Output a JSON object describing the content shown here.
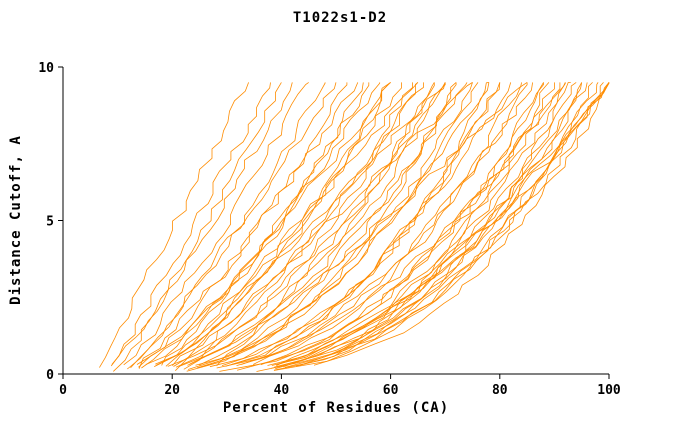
{
  "chart_data": {
    "type": "line",
    "title": "T1022s1-D2",
    "xlabel": "Percent of Residues (CA)",
    "ylabel": "Distance Cutoff, A",
    "xlim": [
      0,
      100
    ],
    "ylim": [
      0,
      10
    ],
    "xticks": [
      0,
      20,
      40,
      60,
      80,
      100
    ],
    "yticks": [
      0,
      5,
      10
    ],
    "grid": false,
    "legend": null,
    "line_color": "#ff8c00",
    "axis_color": "#000000",
    "cutoff_max": 9.5,
    "series_format": "each curve: x0 = percent at cutoff 0, x1 = percent at cutoff 9.5, q = shape exponent of x(y) = x0 + (x1-x0)*(y/9.5)^q",
    "series": [
      {
        "x0": 6,
        "x1": 34,
        "q": 1.0
      },
      {
        "x0": 8,
        "x1": 38,
        "q": 0.95
      },
      {
        "x0": 9,
        "x1": 42,
        "q": 0.9
      },
      {
        "x0": 10,
        "x1": 45,
        "q": 0.85
      },
      {
        "x0": 10,
        "x1": 48,
        "q": 0.8
      },
      {
        "x0": 11,
        "x1": 50,
        "q": 0.9
      },
      {
        "x0": 11,
        "x1": 52,
        "q": 0.75
      },
      {
        "x0": 12,
        "x1": 54,
        "q": 0.85
      },
      {
        "x0": 12,
        "x1": 56,
        "q": 0.7
      },
      {
        "x0": 13,
        "x1": 58,
        "q": 0.8
      },
      {
        "x0": 13,
        "x1": 60,
        "q": 0.65
      },
      {
        "x0": 14,
        "x1": 62,
        "q": 0.75
      },
      {
        "x0": 14,
        "x1": 64,
        "q": 0.6
      },
      {
        "x0": 15,
        "x1": 66,
        "q": 0.7
      },
      {
        "x0": 15,
        "x1": 68,
        "q": 0.55
      },
      {
        "x0": 16,
        "x1": 70,
        "q": 0.65
      },
      {
        "x0": 16,
        "x1": 72,
        "q": 0.5
      },
      {
        "x0": 17,
        "x1": 74,
        "q": 0.6
      },
      {
        "x0": 17,
        "x1": 76,
        "q": 0.5
      },
      {
        "x0": 18,
        "x1": 78,
        "q": 0.55
      },
      {
        "x0": 18,
        "x1": 80,
        "q": 0.45
      },
      {
        "x0": 19,
        "x1": 82,
        "q": 0.5
      },
      {
        "x0": 19,
        "x1": 84,
        "q": 0.45
      },
      {
        "x0": 20,
        "x1": 86,
        "q": 0.5
      },
      {
        "x0": 20,
        "x1": 88,
        "q": 0.42
      },
      {
        "x0": 21,
        "x1": 90,
        "q": 0.45
      },
      {
        "x0": 21,
        "x1": 92,
        "q": 0.4
      },
      {
        "x0": 22,
        "x1": 94,
        "q": 0.42
      },
      {
        "x0": 22,
        "x1": 96,
        "q": 0.4
      },
      {
        "x0": 23,
        "x1": 98,
        "q": 0.38
      },
      {
        "x0": 23,
        "x1": 100,
        "q": 0.4
      },
      {
        "x0": 24,
        "x1": 100,
        "q": 0.36
      },
      {
        "x0": 25,
        "x1": 99,
        "q": 0.42
      },
      {
        "x0": 26,
        "x1": 97,
        "q": 0.38
      },
      {
        "x0": 27,
        "x1": 95,
        "q": 0.45
      },
      {
        "x0": 28,
        "x1": 93,
        "q": 0.4
      },
      {
        "x0": 30,
        "x1": 91,
        "q": 0.5
      },
      {
        "x0": 32,
        "x1": 89,
        "q": 0.45
      },
      {
        "x0": 8,
        "x1": 55,
        "q": 0.6
      },
      {
        "x0": 9,
        "x1": 60,
        "q": 0.55
      },
      {
        "x0": 10,
        "x1": 65,
        "q": 0.5
      },
      {
        "x0": 11,
        "x1": 70,
        "q": 0.48
      },
      {
        "x0": 12,
        "x1": 75,
        "q": 0.45
      },
      {
        "x0": 13,
        "x1": 80,
        "q": 0.42
      },
      {
        "x0": 14,
        "x1": 85,
        "q": 0.4
      },
      {
        "x0": 7,
        "x1": 40,
        "q": 0.8
      },
      {
        "x0": 26,
        "x1": 100,
        "q": 0.5
      },
      {
        "x0": 28,
        "x1": 100,
        "q": 0.55
      },
      {
        "x0": 30,
        "x1": 100,
        "q": 0.6
      },
      {
        "x0": 24,
        "x1": 92,
        "q": 0.55
      },
      {
        "x0": 16,
        "x1": 60,
        "q": 0.9
      },
      {
        "x0": 18,
        "x1": 65,
        "q": 0.95
      },
      {
        "x0": 20,
        "x1": 70,
        "q": 1.0
      },
      {
        "x0": 22,
        "x1": 75,
        "q": 1.05
      },
      {
        "x0": 25,
        "x1": 85,
        "q": 0.9
      },
      {
        "x0": 15,
        "x1": 72,
        "q": 0.45
      },
      {
        "x0": 17,
        "x1": 78,
        "q": 0.42
      },
      {
        "x0": 19,
        "x1": 88,
        "q": 0.4
      },
      {
        "x0": 21,
        "x1": 95,
        "q": 0.38
      },
      {
        "x0": 13,
        "x1": 68,
        "q": 0.5
      }
    ]
  }
}
